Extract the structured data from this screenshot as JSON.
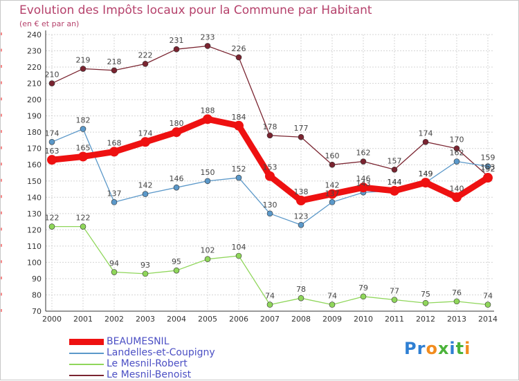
{
  "header": {
    "title": "Evolution des Impôts locaux pour la Commune par Habitant",
    "subtitle": "(en € et par an)"
  },
  "logo": {
    "text": "Proxiti",
    "colors": [
      "#2f7fd3",
      "#2f7fd3",
      "#f28c1e",
      "#4bb33a",
      "#2f7fd3",
      "#4bb33a",
      "#f28c1e"
    ]
  },
  "chart_data": {
    "type": "line",
    "x": [
      "2000",
      "2001",
      "2002",
      "2003",
      "2004",
      "2005",
      "2006",
      "2007",
      "2008",
      "2009",
      "2010",
      "2011",
      "2012",
      "2013",
      "2014"
    ],
    "ylim": [
      70,
      240
    ],
    "yticks": [
      70,
      80,
      90,
      100,
      110,
      120,
      130,
      140,
      150,
      160,
      170,
      180,
      190,
      200,
      210,
      220,
      230,
      240
    ],
    "grid": true,
    "legend_position": "bottom-left",
    "series": [
      {
        "name": "Le Mesnil-Benoist",
        "color": "#7a2430",
        "width": 1.3,
        "marker": 4,
        "values": [
          210,
          219,
          218,
          222,
          231,
          233,
          226,
          178,
          177,
          160,
          162,
          157,
          174,
          170,
          153
        ]
      },
      {
        "name": "Le Mesnil-Robert",
        "color": "#8fd65a",
        "width": 1.3,
        "marker": 4,
        "values": [
          122,
          122,
          94,
          93,
          95,
          102,
          104,
          74,
          78,
          74,
          79,
          77,
          75,
          76,
          74
        ]
      },
      {
        "name": "Landelles-et-Coupigny",
        "color": "#5b98c9",
        "width": 1.3,
        "marker": 4,
        "values": [
          174,
          182,
          137,
          142,
          146,
          150,
          152,
          130,
          123,
          137,
          143,
          144,
          149,
          162,
          159
        ]
      },
      {
        "name": "BEAUMESNIL",
        "color": "#ee1111",
        "width": 9,
        "marker": 7,
        "values": [
          163,
          165,
          168,
          174,
          180,
          188,
          184,
          153,
          138,
          142,
          146,
          144,
          149,
          140,
          152
        ]
      }
    ],
    "legend_order": [
      "BEAUMESNIL",
      "Landelles-et-Coupigny",
      "Le Mesnil-Robert",
      "Le Mesnil-Benoist"
    ]
  }
}
